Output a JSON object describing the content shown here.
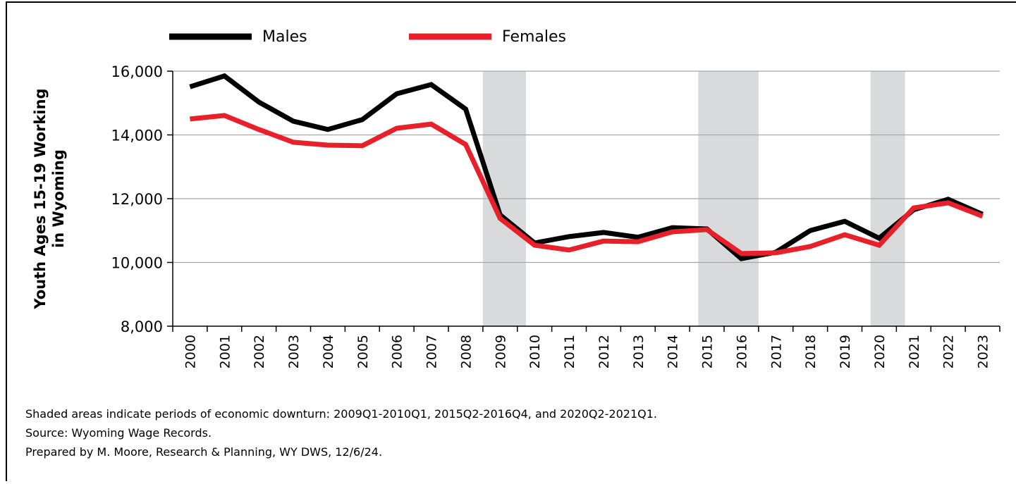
{
  "chart_data": {
    "type": "line",
    "categories": [
      "2000",
      "2001",
      "2002",
      "2003",
      "2004",
      "2005",
      "2006",
      "2007",
      "2008",
      "2009",
      "2010",
      "2011",
      "2012",
      "2013",
      "2014",
      "2015",
      "2016",
      "2017",
      "2018",
      "2019",
      "2020",
      "2021",
      "2022",
      "2023"
    ],
    "series": [
      {
        "name": "Males",
        "color": "#000000",
        "values": [
          15510,
          15850,
          15030,
          14430,
          14170,
          14480,
          15290,
          15580,
          14810,
          11490,
          10610,
          10810,
          10940,
          10790,
          11090,
          11050,
          10120,
          10320,
          11000,
          11290,
          10760,
          11650,
          11980,
          11510
        ]
      },
      {
        "name": "Females",
        "color": "#e8202a",
        "values": [
          14500,
          14610,
          14170,
          13770,
          13680,
          13660,
          14210,
          14340,
          13700,
          11380,
          10540,
          10390,
          10670,
          10650,
          10960,
          11030,
          10280,
          10300,
          10500,
          10870,
          10540,
          11710,
          11870,
          11450
        ]
      }
    ],
    "ylabel_lines": [
      "Youth Ages 15-19 Working",
      "in Wyoming"
    ],
    "ylim": [
      8000,
      16000
    ],
    "yticks": [
      {
        "value": 8000,
        "label": "8,000"
      },
      {
        "value": 10000,
        "label": "10,000"
      },
      {
        "value": 12000,
        "label": "12,000"
      },
      {
        "value": 14000,
        "label": "14,000"
      },
      {
        "value": 16000,
        "label": "16,000"
      }
    ],
    "grid": true,
    "shaded_periods": [
      {
        "start": 2009,
        "end": 2010.25
      },
      {
        "start": 2015.25,
        "end": 2017
      },
      {
        "start": 2020.25,
        "end": 2021.25
      }
    ],
    "shade_color": "#d9dadc",
    "notes": [
      "Shaded areas indicate periods of economic downturn: 2009Q1-2010Q1, 2015Q2-2016Q4, and 2020Q2-2021Q1.",
      "Source: Wyoming Wage Records.",
      "Prepared by M. Moore, Research & Planning, WY DWS, 12/6/24."
    ]
  }
}
